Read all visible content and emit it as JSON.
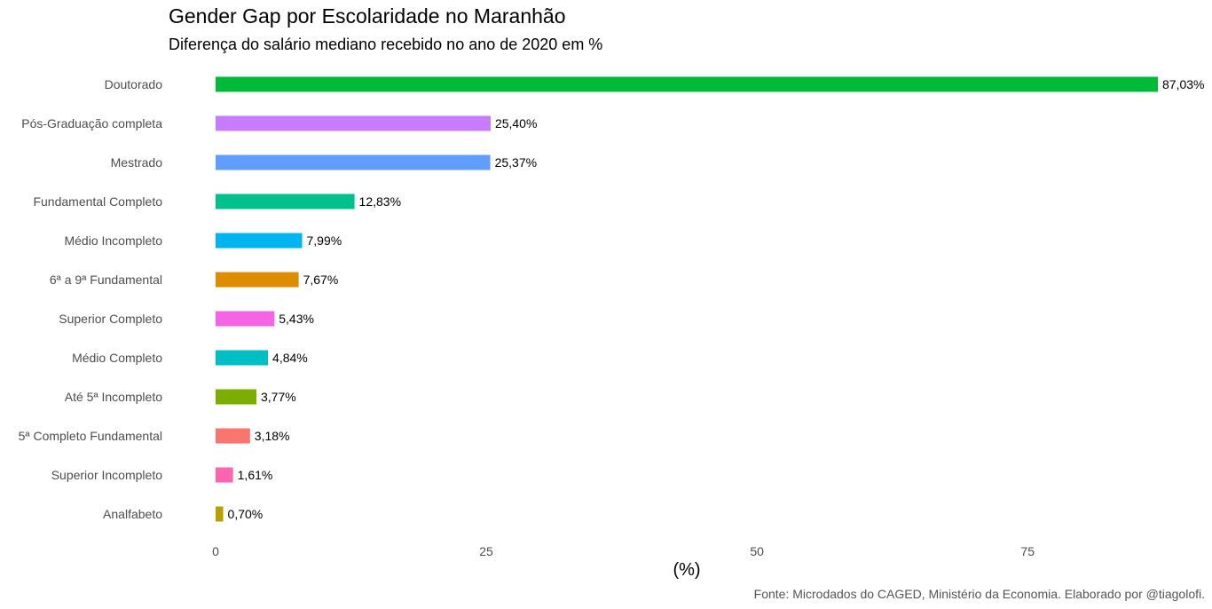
{
  "chart_data": {
    "type": "bar",
    "orientation": "horizontal",
    "title": "Gender Gap por Escolaridade no Maranhão",
    "subtitle": "Diferença do salário mediano recebido no ano de 2020 em %",
    "xlabel": "(%)",
    "ylabel": "",
    "caption": "Fonte: Microdados do CAGED, Ministério da Economia. Elaborado por @tiagolofi.",
    "xlim": [
      0,
      87.03
    ],
    "xticks": [
      0,
      25,
      50,
      75
    ],
    "xtick_labels": [
      "0",
      "25",
      "50",
      "75"
    ],
    "grid": false,
    "legend": "none",
    "categories": [
      "Doutorado",
      "Pós-Graduação completa",
      "Mestrado",
      "Fundamental Completo",
      "Médio Incompleto",
      "6ª a 9ª Fundamental",
      "Superior Completo",
      "Médio Completo",
      "Até 5ª Incompleto",
      "5ª Completo Fundamental",
      "Superior Incompleto",
      "Analfabeto"
    ],
    "values": [
      87.03,
      25.4,
      25.37,
      12.83,
      7.99,
      7.67,
      5.43,
      4.84,
      3.77,
      3.18,
      1.61,
      0.7
    ],
    "value_labels": [
      "87,03%",
      "25,40%",
      "25,37%",
      "12,83%",
      "7,99%",
      "7,67%",
      "5,43%",
      "4,84%",
      "3,77%",
      "3,18%",
      "1,61%",
      "0,70%"
    ],
    "colors": [
      "#00BA38",
      "#C77CFF",
      "#619CFF",
      "#00C08B",
      "#00B4F0",
      "#DE8C00",
      "#F564E3",
      "#00BFC4",
      "#7CAE00",
      "#F8766D",
      "#FF64B0",
      "#B79F00"
    ]
  }
}
